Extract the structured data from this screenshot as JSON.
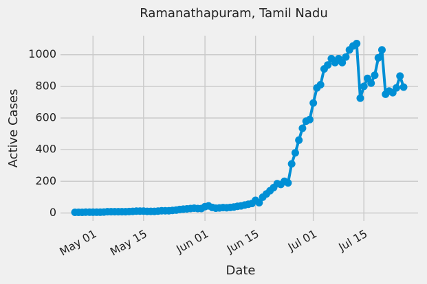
{
  "chart_data": {
    "type": "line",
    "title": "Ramanathapuram, Tamil Nadu",
    "xlabel": "Date",
    "ylabel": "Active Cases",
    "x": [
      "04-26",
      "04-27",
      "04-28",
      "04-29",
      "04-30",
      "05-01",
      "05-02",
      "05-03",
      "05-04",
      "05-05",
      "05-06",
      "05-07",
      "05-08",
      "05-09",
      "05-10",
      "05-11",
      "05-12",
      "05-13",
      "05-14",
      "05-15",
      "05-16",
      "05-17",
      "05-18",
      "05-19",
      "05-20",
      "05-21",
      "05-22",
      "05-23",
      "05-24",
      "05-25",
      "05-26",
      "05-27",
      "05-28",
      "05-29",
      "05-30",
      "05-31",
      "06-01",
      "06-02",
      "06-03",
      "06-04",
      "06-05",
      "06-06",
      "06-07",
      "06-08",
      "06-09",
      "06-10",
      "06-11",
      "06-12",
      "06-13",
      "06-14",
      "06-15",
      "06-16",
      "06-17",
      "06-18",
      "06-19",
      "06-20",
      "06-21",
      "06-22",
      "06-23",
      "06-24",
      "06-25",
      "06-26",
      "06-27",
      "06-28",
      "06-29",
      "06-30",
      "07-01",
      "07-02",
      "07-03",
      "07-04",
      "07-05",
      "07-06",
      "07-07",
      "07-08",
      "07-09",
      "07-10",
      "07-11",
      "07-12",
      "07-13",
      "07-14",
      "07-15",
      "07-16",
      "07-17",
      "07-18",
      "07-19",
      "07-20",
      "07-21",
      "07-22",
      "07-23",
      "07-24",
      "07-25",
      "07-26"
    ],
    "series": [
      {
        "name": "Active Cases",
        "color": "#008fd5",
        "values": [
          4,
          4,
          4,
          5,
          5,
          5,
          5,
          5,
          6,
          8,
          8,
          8,
          8,
          8,
          8,
          9,
          10,
          12,
          12,
          12,
          10,
          10,
          10,
          12,
          14,
          14,
          14,
          16,
          18,
          22,
          24,
          26,
          28,
          30,
          28,
          28,
          40,
          45,
          35,
          30,
          32,
          34,
          33,
          35,
          38,
          42,
          45,
          50,
          55,
          60,
          80,
          65,
          100,
          120,
          140,
          160,
          185,
          180,
          200,
          190,
          310,
          380,
          460,
          535,
          580,
          590,
          695,
          790,
          810,
          910,
          935,
          975,
          950,
          975,
          950,
          985,
          1030,
          1055,
          1070,
          725,
          800,
          850,
          820,
          870,
          980,
          1030,
          750,
          770,
          760,
          790,
          865,
          795
        ]
      }
    ],
    "xlim": [
      "04-22",
      "07-30"
    ],
    "xticks": [
      {
        "value": "05-01",
        "label": "May 01"
      },
      {
        "value": "05-15",
        "label": "May 15"
      },
      {
        "value": "06-01",
        "label": "Jun 01"
      },
      {
        "value": "06-15",
        "label": "Jun 15"
      },
      {
        "value": "07-01",
        "label": "Jul 01"
      },
      {
        "value": "07-15",
        "label": "Jul 15"
      }
    ],
    "ylim": [
      -50,
      1120
    ],
    "yticks": [
      0,
      200,
      400,
      600,
      800,
      1000
    ],
    "grid": true
  }
}
